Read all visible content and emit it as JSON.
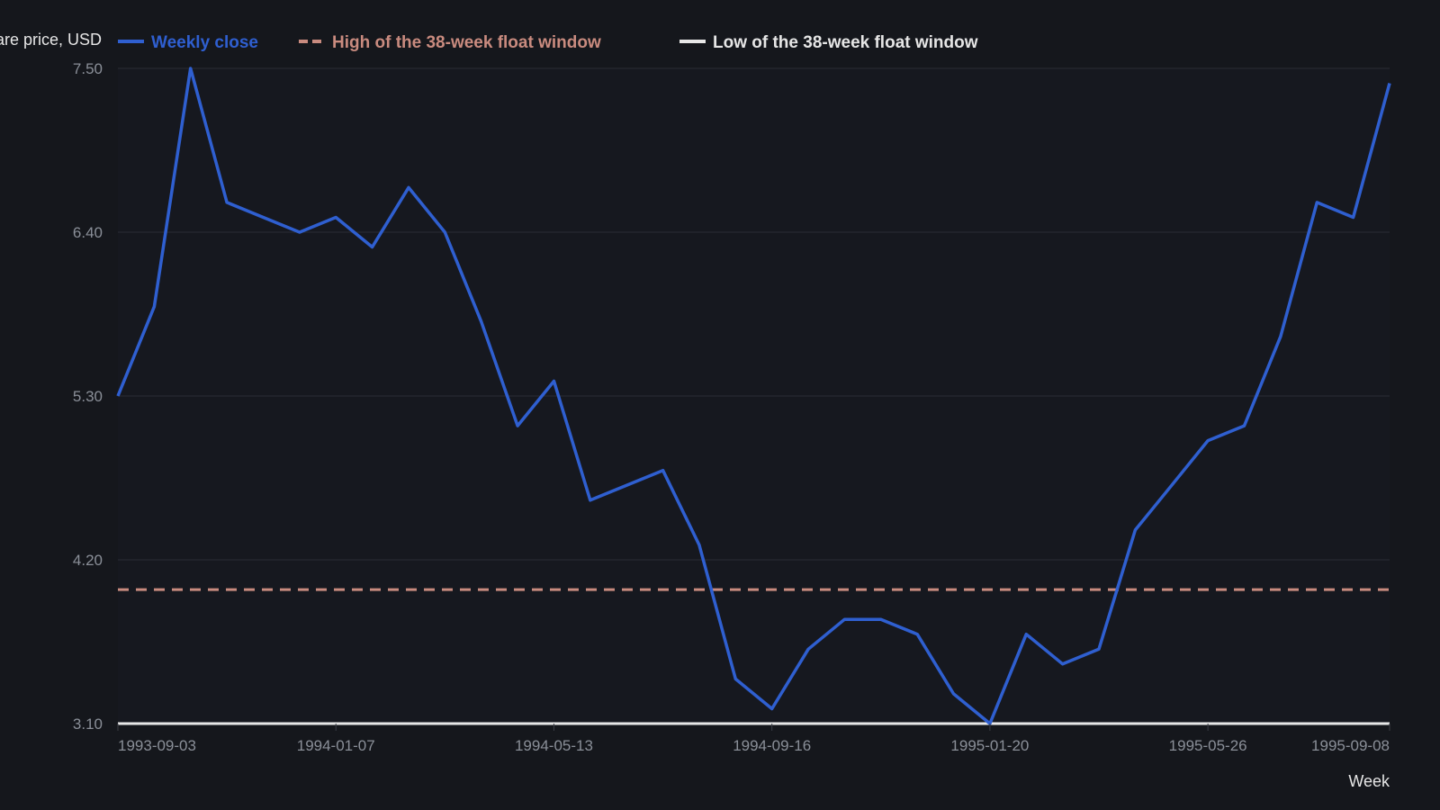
{
  "chart_data": {
    "type": "line",
    "xlabel": "Week",
    "ylabel": "Share price, USD",
    "ylim": [
      3.1,
      7.5
    ],
    "yticks": [
      "3.10",
      "4.20",
      "5.30",
      "6.40",
      "7.50"
    ],
    "xticks": [
      "1993-09-03",
      "1994-01-07",
      "1994-05-13",
      "1994-09-16",
      "1995-01-20",
      "1995-05-26",
      "1995-09-08"
    ],
    "grid": true,
    "legend": "top",
    "x": [
      "1993-09-03",
      "1993-09-24",
      "1993-10-15",
      "1993-11-05",
      "1993-11-26",
      "1993-12-17",
      "1994-01-07",
      "1994-01-28",
      "1994-02-18",
      "1994-03-11",
      "1994-04-01",
      "1994-04-22",
      "1994-05-13",
      "1994-06-03",
      "1994-06-24",
      "1994-07-15",
      "1994-08-05",
      "1994-08-26",
      "1994-09-16",
      "1994-10-07",
      "1994-10-28",
      "1994-11-18",
      "1994-12-09",
      "1994-12-30",
      "1995-01-20",
      "1995-02-10",
      "1995-03-03",
      "1995-03-24",
      "1995-04-14",
      "1995-05-05",
      "1995-05-26",
      "1995-06-16",
      "1995-07-07",
      "1995-07-28",
      "1995-08-18",
      "1995-09-08"
    ],
    "series": [
      {
        "name": "Weekly close",
        "style": "solid",
        "color": "#2f5fd0",
        "values": [
          5.3,
          5.9,
          7.5,
          6.6,
          6.5,
          6.4,
          6.5,
          6.3,
          6.7,
          6.4,
          5.8,
          5.1,
          5.4,
          4.6,
          4.7,
          4.8,
          4.3,
          3.4,
          3.2,
          3.6,
          3.8,
          3.8,
          3.7,
          3.3,
          3.1,
          3.7,
          3.5,
          3.6,
          4.4,
          4.7,
          5.0,
          5.1,
          5.7,
          6.6,
          6.5,
          7.4
        ]
      },
      {
        "name": "High of the 38-week float window",
        "style": "dashed",
        "color": "#c98b7f",
        "values": [
          4.0,
          4.0,
          4.0,
          4.0,
          4.0,
          4.0,
          4.0,
          4.0,
          4.0,
          4.0,
          4.0,
          4.0,
          4.0,
          4.0,
          4.0,
          4.0,
          4.0,
          4.0,
          4.0,
          4.0,
          4.0,
          4.0,
          4.0,
          4.0,
          4.0,
          4.0,
          4.0,
          4.0,
          4.0,
          4.0,
          4.0,
          4.0,
          4.0,
          4.0,
          4.0,
          4.0
        ]
      },
      {
        "name": "Low of the 38-week float window",
        "style": "solid",
        "color": "#e8e8e8",
        "values": [
          3.1,
          3.1,
          3.1,
          3.1,
          3.1,
          3.1,
          3.1,
          3.1,
          3.1,
          3.1,
          3.1,
          3.1,
          3.1,
          3.1,
          3.1,
          3.1,
          3.1,
          3.1,
          3.1,
          3.1,
          3.1,
          3.1,
          3.1,
          3.1,
          3.1,
          3.1,
          3.1,
          3.1,
          3.1,
          3.1,
          3.1,
          3.1,
          3.1,
          3.1,
          3.1,
          3.1
        ]
      }
    ]
  },
  "colors": {
    "background": "#15171c",
    "plot_background": "#16181f",
    "grid": "#2a2d35",
    "tick_text": "#8a8f98",
    "axis_text": "#e6e6e6"
  }
}
